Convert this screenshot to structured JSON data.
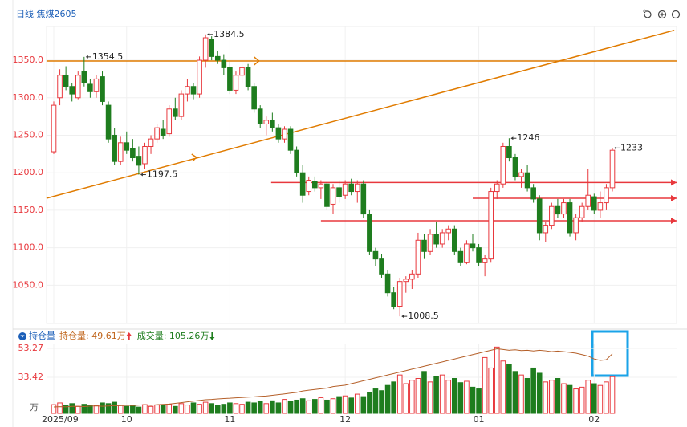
{
  "chart_data": {
    "type": "candlestick",
    "title": "日线 焦煤2605",
    "categories": [
      "2025/09",
      null,
      null,
      null,
      null,
      null,
      null,
      null,
      null,
      null,
      null,
      null,
      "10",
      null,
      null,
      null,
      null,
      null,
      null,
      null,
      null,
      null,
      null,
      null,
      null,
      null,
      null,
      null,
      null,
      "11",
      null,
      null,
      null,
      null,
      null,
      null,
      null,
      null,
      null,
      null,
      null,
      null,
      null,
      null,
      null,
      null,
      null,
      null,
      "12",
      null,
      null,
      null,
      null,
      null,
      null,
      null,
      null,
      null,
      null,
      null,
      null,
      null,
      null,
      null,
      null,
      null,
      null,
      null,
      null,
      null,
      "01",
      null,
      null,
      null,
      null,
      null,
      null,
      null,
      null,
      null,
      null,
      null,
      null,
      null,
      null,
      null,
      null,
      null,
      null,
      "02",
      null,
      null,
      null
    ],
    "ohlc": [
      [
        1228,
        1295,
        1225,
        1290
      ],
      [
        1300,
        1338,
        1290,
        1330
      ],
      [
        1330,
        1342,
        1310,
        1315
      ],
      [
        1315,
        1320,
        1295,
        1305
      ],
      [
        1300,
        1335,
        1298,
        1330
      ],
      [
        1335,
        1354.5,
        1315,
        1320
      ],
      [
        1318,
        1325,
        1300,
        1308
      ],
      [
        1308,
        1330,
        1300,
        1325
      ],
      [
        1328,
        1335,
        1290,
        1295
      ],
      [
        1290,
        1295,
        1240,
        1245
      ],
      [
        1250,
        1260,
        1210,
        1215
      ],
      [
        1215,
        1248,
        1210,
        1240
      ],
      [
        1240,
        1255,
        1225,
        1230
      ],
      [
        1232,
        1245,
        1215,
        1220
      ],
      [
        1222,
        1235,
        1197.5,
        1210
      ],
      [
        1212,
        1240,
        1205,
        1235
      ],
      [
        1235,
        1250,
        1225,
        1245
      ],
      [
        1245,
        1265,
        1240,
        1260
      ],
      [
        1258,
        1270,
        1245,
        1250
      ],
      [
        1252,
        1290,
        1248,
        1285
      ],
      [
        1285,
        1300,
        1270,
        1275
      ],
      [
        1275,
        1310,
        1270,
        1305
      ],
      [
        1305,
        1325,
        1295,
        1315
      ],
      [
        1315,
        1320,
        1298,
        1305
      ],
      [
        1305,
        1355,
        1300,
        1350
      ],
      [
        1350,
        1384.5,
        1340,
        1380
      ],
      [
        1378,
        1382,
        1350,
        1355
      ],
      [
        1355,
        1362,
        1345,
        1350
      ],
      [
        1350,
        1358,
        1330,
        1340
      ],
      [
        1340,
        1348,
        1305,
        1310
      ],
      [
        1310,
        1335,
        1305,
        1330
      ],
      [
        1330,
        1345,
        1320,
        1340
      ],
      [
        1340,
        1345,
        1310,
        1315
      ],
      [
        1315,
        1320,
        1280,
        1285
      ],
      [
        1285,
        1290,
        1260,
        1265
      ],
      [
        1265,
        1275,
        1250,
        1270
      ],
      [
        1270,
        1280,
        1255,
        1260
      ],
      [
        1260,
        1265,
        1240,
        1245
      ],
      [
        1245,
        1262,
        1240,
        1258
      ],
      [
        1258,
        1262,
        1225,
        1230
      ],
      [
        1230,
        1235,
        1195,
        1200
      ],
      [
        1200,
        1210,
        1160,
        1170
      ],
      [
        1175,
        1195,
        1170,
        1190
      ],
      [
        1188,
        1195,
        1175,
        1180
      ],
      [
        1180,
        1190,
        1165,
        1185
      ],
      [
        1185,
        1188,
        1150,
        1155
      ],
      [
        1158,
        1185,
        1145,
        1180
      ],
      [
        1180,
        1190,
        1160,
        1168
      ],
      [
        1170,
        1190,
        1165,
        1185
      ],
      [
        1185,
        1192,
        1170,
        1175
      ],
      [
        1175,
        1190,
        1160,
        1185
      ],
      [
        1185,
        1190,
        1140,
        1145
      ],
      [
        1145,
        1150,
        1090,
        1095
      ],
      [
        1095,
        1100,
        1075,
        1085
      ],
      [
        1085,
        1092,
        1060,
        1065
      ],
      [
        1065,
        1070,
        1035,
        1040
      ],
      [
        1040,
        1048,
        1018,
        1022
      ],
      [
        1022,
        1060,
        1008.5,
        1055
      ],
      [
        1055,
        1062,
        1040,
        1058
      ],
      [
        1058,
        1070,
        1045,
        1065
      ],
      [
        1065,
        1120,
        1060,
        1110
      ],
      [
        1110,
        1118,
        1085,
        1095
      ],
      [
        1095,
        1125,
        1090,
        1118
      ],
      [
        1118,
        1135,
        1100,
        1105
      ],
      [
        1105,
        1125,
        1100,
        1120
      ],
      [
        1120,
        1130,
        1110,
        1125
      ],
      [
        1125,
        1130,
        1090,
        1095
      ],
      [
        1095,
        1100,
        1075,
        1080
      ],
      [
        1080,
        1110,
        1078,
        1105
      ],
      [
        1105,
        1118,
        1095,
        1100
      ],
      [
        1100,
        1105,
        1075,
        1080
      ],
      [
        1080,
        1090,
        1062,
        1085
      ],
      [
        1085,
        1180,
        1080,
        1175
      ],
      [
        1175,
        1190,
        1165,
        1185
      ],
      [
        1185,
        1240,
        1180,
        1235
      ],
      [
        1235,
        1246,
        1215,
        1220
      ],
      [
        1220,
        1225,
        1190,
        1195
      ],
      [
        1195,
        1205,
        1180,
        1200
      ],
      [
        1200,
        1210,
        1175,
        1180
      ],
      [
        1180,
        1185,
        1160,
        1165
      ],
      [
        1165,
        1170,
        1110,
        1120
      ],
      [
        1120,
        1135,
        1108,
        1130
      ],
      [
        1130,
        1160,
        1125,
        1155
      ],
      [
        1155,
        1165,
        1140,
        1145
      ],
      [
        1145,
        1165,
        1140,
        1160
      ],
      [
        1160,
        1165,
        1115,
        1120
      ],
      [
        1120,
        1145,
        1110,
        1140
      ],
      [
        1140,
        1160,
        1135,
        1155
      ],
      [
        1155,
        1205,
        1150,
        1170
      ],
      [
        1168,
        1172,
        1145,
        1150
      ],
      [
        1150,
        1175,
        1140,
        1160
      ],
      [
        1160,
        1185,
        1150,
        1180
      ],
      [
        1180,
        1233,
        1175,
        1230
      ]
    ],
    "up_color": "#e8383d",
    "down_color": "#1e7d1e",
    "ylim": [
      999,
      1395
    ],
    "yticks": [
      {
        "value": 1050,
        "label": "1050.0"
      },
      {
        "value": 1100,
        "label": "1100.0"
      },
      {
        "value": 1150,
        "label": "1150.0"
      },
      {
        "value": 1200,
        "label": "1200.0"
      },
      {
        "value": 1250,
        "label": "1250.0"
      },
      {
        "value": 1300,
        "label": "1300.0"
      },
      {
        "value": 1350,
        "label": "1350.0"
      }
    ],
    "grid": true,
    "markers": [
      {
        "candle": 5,
        "at": "high"
      },
      {
        "candle": 14,
        "at": "low"
      },
      {
        "candle": 25,
        "at": "high"
      },
      {
        "candle": 57,
        "at": "low"
      },
      {
        "candle": 75,
        "at": "high"
      },
      {
        "candle": 92,
        "at": "high"
      }
    ],
    "lines": [
      {
        "kind": "horizontal",
        "y": 1349,
        "from": -1.2,
        "color": "#e07b00"
      },
      {
        "kind": "horizontal",
        "y": 1187,
        "from": 35.8,
        "color": "#e8383d"
      },
      {
        "kind": "horizontal",
        "y": 1166,
        "from": 69,
        "color": "#e8383d"
      },
      {
        "kind": "horizontal",
        "y": 1136,
        "from": 44,
        "color": "#e8383d"
      },
      {
        "kind": "trend",
        "from": [
          -1.2,
          1166
        ],
        "to": [
          102.2,
          1390
        ],
        "color": "#e07b00"
      }
    ],
    "lower": {
      "legend": "持仓量",
      "readouts": [
        {
          "text": "持仓量: 49.61万",
          "color": "#c0641a"
        },
        {
          "text": "成交量: 105.26万",
          "color": "#1e7d1e"
        }
      ],
      "unit": "万",
      "ylim": [
        8.6,
        56.6
      ],
      "yticks": [
        33.42,
        53.27
      ],
      "oi": {
        "color": "#b5602a",
        "values": [
          13,
          13.2,
          13.1,
          13.4,
          13.5,
          13.3,
          13.6,
          13.8,
          13.5,
          13.7,
          14,
          13.9,
          14.2,
          14,
          14.3,
          14.5,
          14.2,
          14.6,
          14.8,
          15,
          15.5,
          16,
          16.5,
          17,
          17.5,
          18,
          18.2,
          18.5,
          18.8,
          19,
          19.3,
          19.5,
          19.8,
          20,
          20.3,
          20.5,
          21,
          21.5,
          22,
          22.5,
          23,
          24,
          24.5,
          25,
          25.5,
          26,
          27,
          27.5,
          28,
          29,
          30,
          31,
          32,
          33,
          34,
          35,
          36,
          37,
          38,
          39,
          40,
          41,
          42,
          43,
          44,
          45,
          46,
          47,
          48,
          49,
          50,
          51,
          52,
          53,
          52.5,
          52,
          52.3,
          51.8,
          52,
          51.5,
          52,
          51.6,
          51,
          51.4,
          51,
          50.5,
          50,
          49,
          48,
          46,
          45,
          45.5,
          49.61
        ]
      },
      "volume": {
        "ylim": [
          0,
          200
        ],
        "values": [
          25,
          30,
          22,
          28,
          20,
          26,
          24,
          22,
          30,
          28,
          32,
          24,
          20,
          22,
          18,
          25,
          20,
          24,
          22,
          26,
          20,
          28,
          24,
          30,
          26,
          32,
          28,
          24,
          26,
          30,
          28,
          26,
          32,
          30,
          34,
          28,
          36,
          30,
          40,
          34,
          38,
          42,
          36,
          40,
          45,
          38,
          42,
          48,
          50,
          44,
          55,
          48,
          60,
          70,
          65,
          80,
          90,
          110,
          85,
          95,
          100,
          120,
          90,
          105,
          110,
          95,
          100,
          88,
          92,
          75,
          70,
          160,
          130,
          190,
          150,
          140,
          120,
          110,
          100,
          130,
          115,
          90,
          95,
          100,
          85,
          80,
          70,
          75,
          95,
          85,
          80,
          90,
          105.26
        ]
      }
    }
  }
}
